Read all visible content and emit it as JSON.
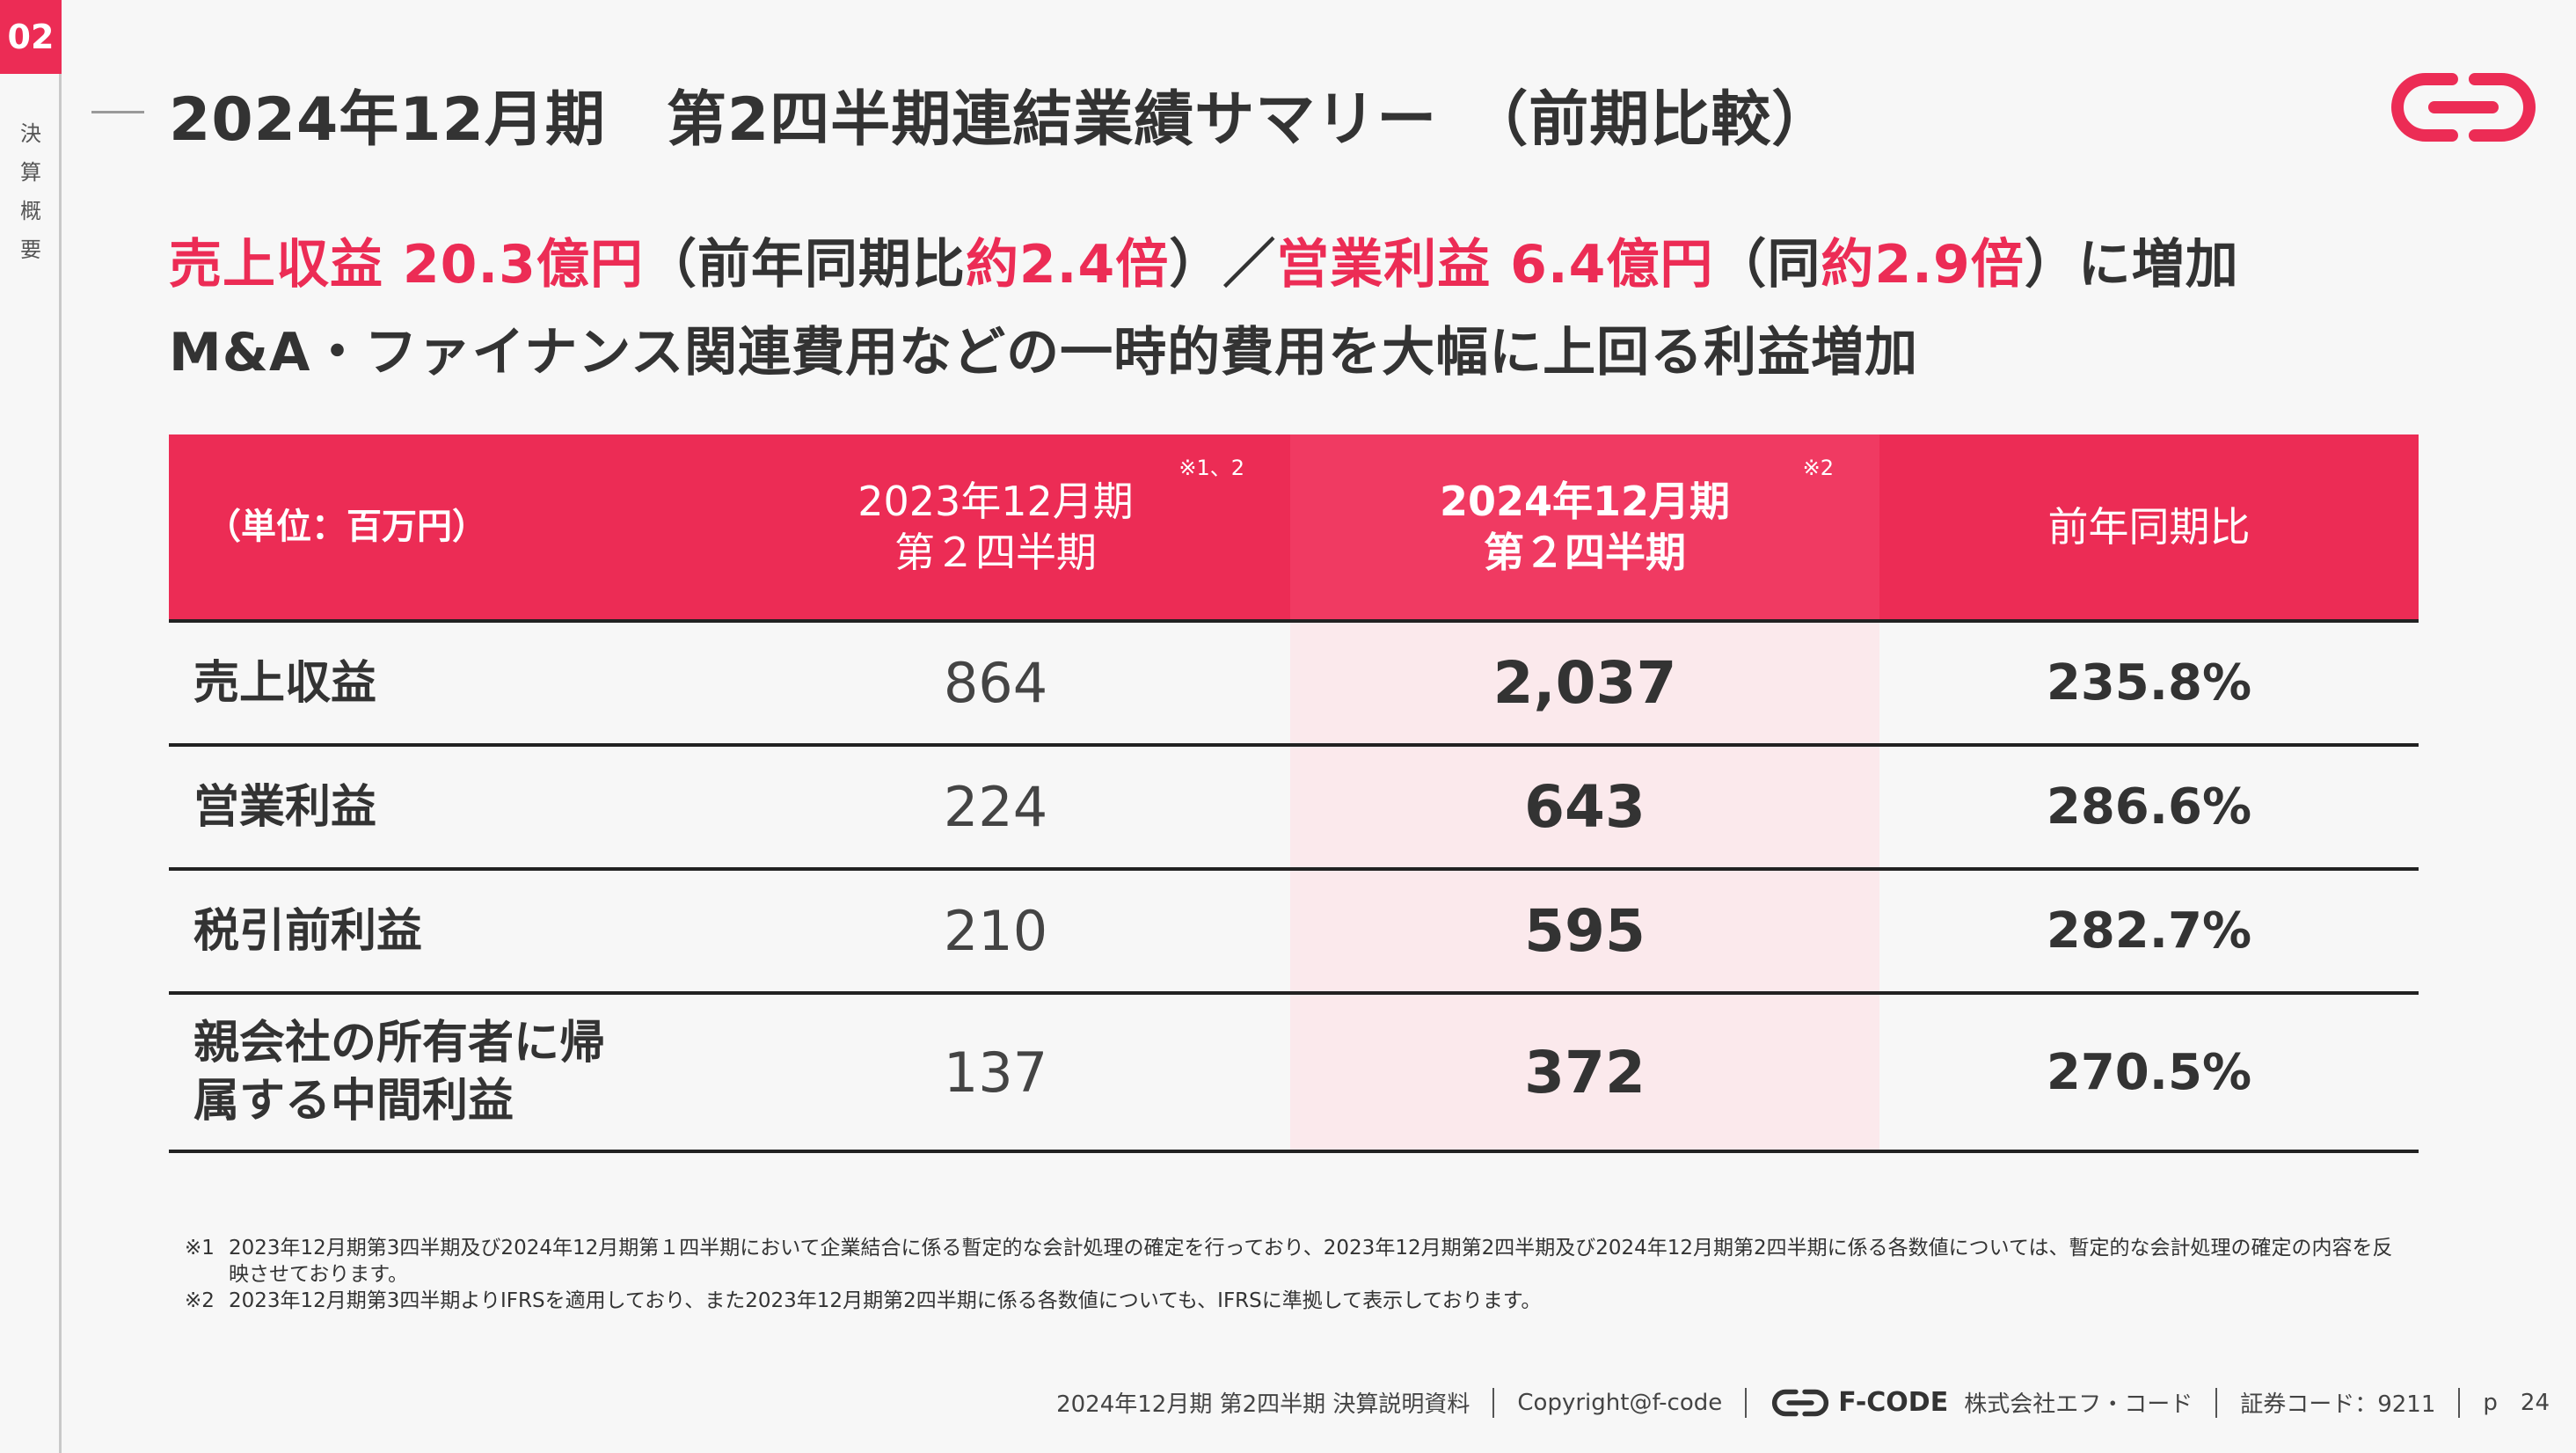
{
  "sidebar": {
    "page_number": "02",
    "section": "決算概要"
  },
  "header": {
    "title": "2024年12月期　第2四半期連結業績サマリー　（前期比較）",
    "logo_icon": "f-code-logo-icon",
    "brand_color": "#ec2c55"
  },
  "headline": {
    "line1": [
      {
        "text": "売上収益 20.3億円",
        "accent": true
      },
      {
        "text": "（前年同期比",
        "accent": false
      },
      {
        "text": "約2.4倍",
        "accent": true
      },
      {
        "text": "）／",
        "accent": false
      },
      {
        "text": "営業利益 6.4億円",
        "accent": true
      },
      {
        "text": "（同",
        "accent": false
      },
      {
        "text": "約2.9倍",
        "accent": true
      },
      {
        "text": "）に増加",
        "accent": false
      }
    ],
    "line2": "M&A・ファイナンス関連費用などの一時的費用を大幅に上回る利益増加"
  },
  "table": {
    "unit_label": "（単位：百万円）",
    "col_prev": {
      "line1": "2023年12月期",
      "line2": "第２四半期",
      "note": "※1、2"
    },
    "col_curr": {
      "line1": "2024年12月期",
      "line2": "第２四半期",
      "note": "※2"
    },
    "col_ratio": "前年同期比",
    "rows": [
      {
        "label": "売上収益",
        "prev": "864",
        "curr": "2,037",
        "ratio": "235.8%"
      },
      {
        "label": "営業利益",
        "prev": "224",
        "curr": "643",
        "ratio": "286.6%"
      },
      {
        "label": "税引前利益",
        "prev": "210",
        "curr": "595",
        "ratio": "282.7%"
      },
      {
        "label": "親会社の所有者に帰属する中間利益",
        "prev": "137",
        "curr": "372",
        "ratio": "270.5%"
      }
    ]
  },
  "notes": [
    {
      "mark": "※1",
      "text": "2023年12月期第3四半期及び2024年12月期第１四半期において企業結合に係る暫定的な会計処理の確定を行っており、2023年12月期第2四半期及び2024年12月期第2四半期に係る各数値については、暫定的な会計処理の確定の内容を反映させております。"
    },
    {
      "mark": "※2",
      "text": "2023年12月期第3四半期よりIFRSを適用しており、また2023年12月期第2四半期に係る各数値についても、IFRSに準拠して表示しております。"
    }
  ],
  "footer": {
    "doc_title": "2024年12月期 第2四半期 決算説明資料",
    "copyright": "Copyright@f-code",
    "brand": "F-CODE",
    "company": "株式会社エフ・コード",
    "stock_code": "証券コード：9211",
    "page_label": "p",
    "page_number": "24"
  }
}
